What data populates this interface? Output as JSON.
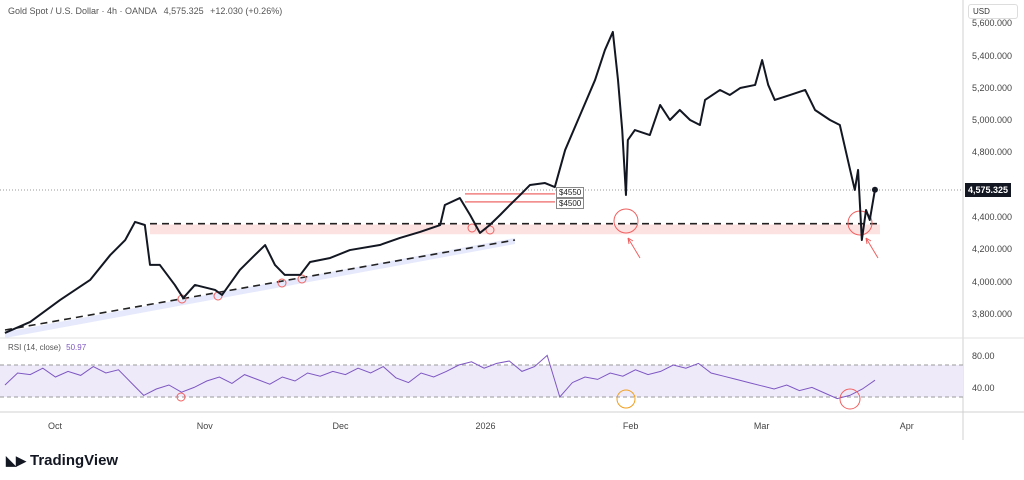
{
  "header": {
    "symbol": "Gold Spot / U.S. Dollar · 4h · OANDA",
    "price": "4,575.325",
    "change": "+12.030 (+0.26%)"
  },
  "currency": "USD",
  "logo": "TradingView",
  "chart_data": {
    "type": "line",
    "title": "Gold Spot / U.S. Dollar · 4h · OANDA",
    "x_unit": "days since Oct 1",
    "days": [
      -10.7,
      -5.3,
      1.1,
      7.5,
      11.8,
      15,
      17.1,
      19.2,
      20.3,
      22.4,
      25.6,
      27.4,
      29.9,
      34.2,
      35.7,
      39.5,
      42.7,
      44.9,
      47,
      49.1,
      52.4,
      54.5,
      58.8,
      63,
      69.4,
      73.7,
      78,
      82.3,
      83.3,
      86.5,
      88.7,
      90.8,
      92.9,
      95.1,
      97.2,
      99.4,
      101.5,
      104.7,
      106.8,
      109,
      112.2,
      115.4,
      117.5,
      119.2,
      120.3,
      121.2,
      122,
      122.4,
      123.9,
      127.1,
      129.3,
      131.4,
      133.5,
      135.7,
      137.8,
      138.9,
      142.1,
      144.2,
      146.4,
      149.6,
      151.1,
      152.4,
      153.8,
      157.1,
      160.3,
      162.4,
      165.6,
      167.7,
      169.9,
      170.9,
      171.6,
      172.4,
      173.3,
      174.1,
      175.2
    ],
    "prices": [
      3689,
      3757,
      3893,
      4017,
      4171,
      4264,
      4376,
      4357,
      4110,
      4110,
      3986,
      3905,
      3986,
      3955,
      3924,
      4079,
      4171,
      4233,
      4110,
      4048,
      4048,
      4128,
      4153,
      4202,
      4233,
      4277,
      4314,
      4357,
      4481,
      4524,
      4419,
      4308,
      4357,
      4419,
      4481,
      4543,
      4605,
      4617,
      4592,
      4821,
      5038,
      5255,
      5440,
      5552,
      5255,
      4945,
      4543,
      4883,
      4945,
      4914,
      5100,
      5007,
      5069,
      5007,
      4976,
      5131,
      5193,
      5162,
      5205,
      5224,
      5378,
      5224,
      5131,
      5162,
      5193,
      5069,
      5007,
      4976,
      4698,
      4574,
      4698,
      4264,
      4450,
      4388,
      4575
    ],
    "ylim": [
      3650,
      5650
    ],
    "y_ticks": [
      "5,600.000",
      "5,400.000",
      "5,200.000",
      "5,000.000",
      "4,800.000",
      "4,400.000",
      "4,200.000",
      "4,000.000",
      "3,800.000"
    ],
    "y_tick_values": [
      5600,
      5400,
      5200,
      5000,
      4800,
      4400,
      4200,
      4000,
      3800
    ],
    "x_ticks": [
      "Oct",
      "Nov",
      "Dec",
      "2026",
      "Feb",
      "Mar",
      "Apr"
    ],
    "x_tick_days": [
      0,
      32,
      61,
      92,
      123,
      151,
      182
    ],
    "current_price": "4,575.325",
    "annotations": {
      "levels": [
        {
          "label": "$4550",
          "value": 4550
        },
        {
          "label": "$4500",
          "value": 4500
        }
      ],
      "support_dashed": 4365,
      "zone": [
        4300,
        4360
      ]
    },
    "rsi": {
      "label": "RSI (14, close)",
      "value": "50.97",
      "ticks": [
        "80.00",
        "40.00"
      ],
      "tick_values": [
        80,
        40
      ],
      "band": [
        70,
        30
      ],
      "values": [
        45,
        60,
        58,
        66,
        55,
        62,
        57,
        68,
        60,
        64,
        48,
        32,
        40,
        45,
        36,
        42,
        50,
        55,
        47,
        58,
        52,
        46,
        55,
        50,
        60,
        56,
        62,
        58,
        66,
        60,
        68,
        54,
        48,
        60,
        55,
        62,
        70,
        74,
        66,
        72,
        75,
        62,
        68,
        82,
        30,
        48,
        55,
        52,
        60,
        56,
        64,
        58,
        62,
        70,
        66,
        72,
        60,
        56,
        52,
        48,
        44,
        40,
        45,
        38,
        42,
        35,
        28,
        32,
        40,
        51
      ]
    }
  }
}
